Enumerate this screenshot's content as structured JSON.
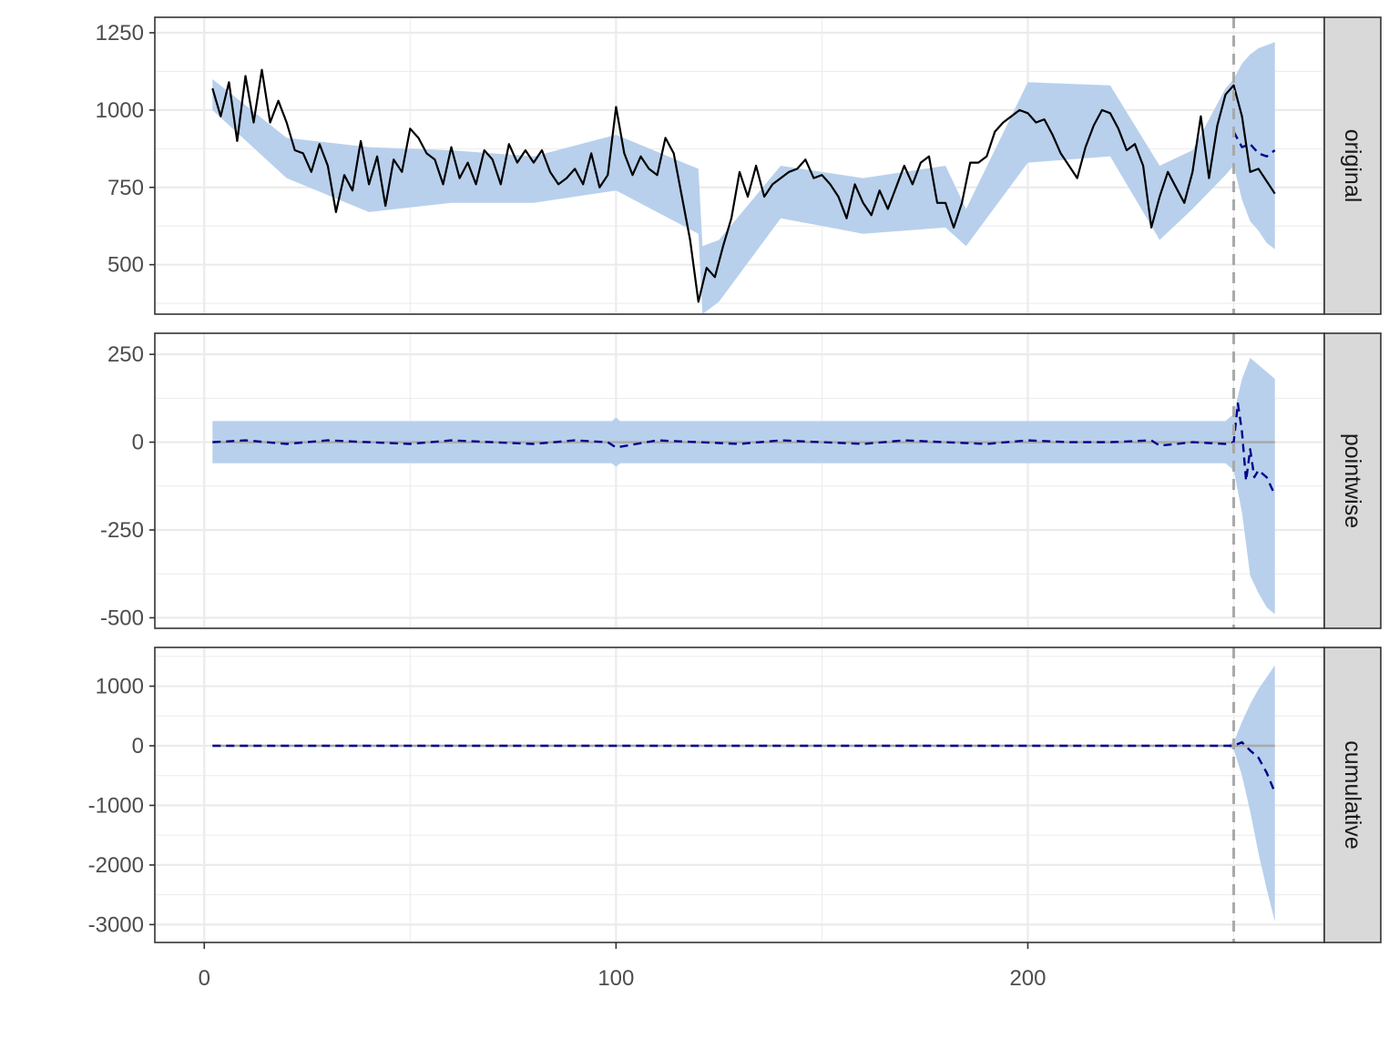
{
  "chart_data": {
    "type": "line",
    "x_axis": {
      "ticks": [
        0,
        100,
        200
      ],
      "tick_labels": [
        "0",
        "100",
        "200"
      ],
      "xlim": [
        -12,
        272
      ]
    },
    "intervention_x": 250,
    "colors": {
      "band": "#b8d0ec",
      "observed": "#000000",
      "prediction": "#00008b",
      "reference": "#a9a9a9",
      "strip": "#d9d9d9",
      "grid": "#ebebeb"
    },
    "panels": [
      {
        "strip": "original",
        "ylim": [
          340,
          1300
        ],
        "y_ticks": [
          500,
          750,
          1000,
          1250
        ],
        "y_tick_labels": [
          "500",
          "750",
          "1000",
          "1250"
        ],
        "series": [
          {
            "role": "observed",
            "x": [
              2,
              4,
              6,
              8,
              10,
              12,
              14,
              16,
              18,
              20,
              22,
              24,
              26,
              28,
              30,
              32,
              34,
              36,
              38,
              40,
              42,
              44,
              46,
              48,
              50,
              52,
              54,
              56,
              58,
              60,
              62,
              64,
              66,
              68,
              70,
              72,
              74,
              76,
              78,
              80,
              82,
              84,
              86,
              88,
              90,
              92,
              94,
              96,
              98,
              100,
              102,
              104,
              106,
              108,
              110,
              112,
              114,
              116,
              118,
              120,
              122,
              124,
              126,
              128,
              130,
              132,
              134,
              136,
              138,
              140,
              142,
              144,
              146,
              148,
              150,
              152,
              154,
              156,
              158,
              160,
              162,
              164,
              166,
              168,
              170,
              172,
              174,
              176,
              178,
              180,
              182,
              184,
              186,
              188,
              190,
              192,
              194,
              196,
              198,
              200,
              202,
              204,
              206,
              208,
              210,
              212,
              214,
              216,
              218,
              220,
              222,
              224,
              226,
              228,
              230,
              232,
              234,
              236,
              238,
              240,
              242,
              244,
              246,
              248,
              250,
              252,
              254,
              256,
              258,
              260
            ],
            "y": [
              1070,
              980,
              1090,
              900,
              1110,
              960,
              1130,
              960,
              1030,
              960,
              870,
              860,
              800,
              890,
              820,
              670,
              790,
              740,
              900,
              760,
              850,
              690,
              840,
              800,
              940,
              910,
              860,
              840,
              760,
              880,
              780,
              830,
              760,
              870,
              840,
              760,
              890,
              830,
              870,
              830,
              870,
              800,
              760,
              780,
              810,
              760,
              860,
              750,
              790,
              1010,
              860,
              790,
              850,
              810,
              790,
              910,
              860,
              720,
              580,
              380,
              490,
              460,
              560,
              650,
              800,
              720,
              820,
              720,
              760,
              780,
              800,
              810,
              840,
              780,
              790,
              760,
              720,
              650,
              760,
              700,
              660,
              740,
              680,
              750,
              820,
              760,
              830,
              850,
              700,
              700,
              620,
              700,
              830,
              830,
              850,
              930,
              960,
              980,
              1000,
              990,
              960,
              970,
              920,
              860,
              820,
              780,
              880,
              950,
              1000,
              990,
              940,
              870,
              890,
              820,
              620,
              720,
              800,
              750,
              700,
              800,
              980,
              780,
              950,
              1050,
              1080,
              980,
              800,
              810,
              770,
              730
            ],
            "style": "solid"
          },
          {
            "role": "prediction",
            "x": [
              250,
              252,
              254,
              256,
              258,
              260
            ],
            "y": [
              930,
              880,
              890,
              860,
              850,
              870
            ],
            "style": "dashed"
          }
        ],
        "band": {
          "x": [
            2,
            20,
            40,
            60,
            80,
            100,
            120,
            121,
            125,
            140,
            160,
            180,
            185,
            200,
            220,
            232,
            240,
            248,
            250,
            252,
            254,
            256,
            258,
            260
          ],
          "lower": [
            1000,
            780,
            670,
            700,
            700,
            740,
            600,
            340,
            380,
            650,
            600,
            620,
            560,
            830,
            850,
            580,
            680,
            790,
            820,
            710,
            640,
            610,
            570,
            550
          ],
          "upper": [
            1100,
            910,
            880,
            870,
            850,
            920,
            810,
            560,
            580,
            820,
            780,
            820,
            680,
            1090,
            1080,
            820,
            870,
            1070,
            1100,
            1150,
            1180,
            1200,
            1210,
            1220
          ]
        }
      },
      {
        "strip": "pointwise",
        "ylim": [
          -530,
          310
        ],
        "y_ticks": [
          -500,
          -250,
          0,
          250
        ],
        "y_tick_labels": [
          "-500",
          "-250",
          "0",
          "250"
        ],
        "series": [
          {
            "role": "prediction",
            "x": [
              2,
              10,
              20,
              30,
              40,
              50,
              60,
              70,
              80,
              90,
              98,
              100,
              110,
              120,
              130,
              140,
              150,
              160,
              170,
              180,
              190,
              200,
              210,
              220,
              230,
              232,
              240,
              248,
              250,
              251,
              252,
              253,
              254,
              255,
              256,
              258,
              260
            ],
            "y": [
              0,
              5,
              -5,
              5,
              0,
              -5,
              5,
              0,
              -5,
              5,
              0,
              -15,
              5,
              0,
              -5,
              5,
              0,
              -5,
              5,
              0,
              -5,
              5,
              0,
              0,
              5,
              -10,
              0,
              -5,
              0,
              110,
              30,
              -110,
              -20,
              -100,
              -80,
              -100,
              -150
            ],
            "style": "dashed"
          }
        ],
        "band": {
          "x": [
            2,
            30,
            60,
            99,
            100,
            101,
            130,
            160,
            190,
            220,
            248,
            250,
            252,
            254,
            256,
            258,
            260
          ],
          "lower": [
            -60,
            -60,
            -60,
            -60,
            -70,
            -60,
            -60,
            -60,
            -60,
            -60,
            -60,
            -80,
            -200,
            -380,
            -430,
            -470,
            -490
          ],
          "upper": [
            60,
            60,
            60,
            60,
            70,
            60,
            60,
            60,
            60,
            60,
            60,
            80,
            180,
            240,
            220,
            200,
            180
          ]
        }
      },
      {
        "strip": "cumulative",
        "ylim": [
          -3300,
          1650
        ],
        "y_ticks": [
          -3000,
          -2000,
          -1000,
          0,
          1000
        ],
        "y_tick_labels": [
          "-3000",
          "-2000",
          "-1000",
          "0",
          "1000"
        ],
        "series": [
          {
            "role": "prediction",
            "x": [
              2,
              100,
              200,
              250,
              252,
              254,
              256,
              258,
              260
            ],
            "y": [
              0,
              0,
              0,
              0,
              60,
              -80,
              -200,
              -450,
              -780
            ],
            "style": "dashed"
          }
        ],
        "band": {
          "x": [
            2,
            248,
            250,
            252,
            254,
            256,
            258,
            260
          ],
          "lower": [
            0,
            0,
            -60,
            -500,
            -1100,
            -1800,
            -2400,
            -2950
          ],
          "upper": [
            0,
            0,
            60,
            400,
            700,
            950,
            1150,
            1350
          ]
        }
      }
    ]
  }
}
